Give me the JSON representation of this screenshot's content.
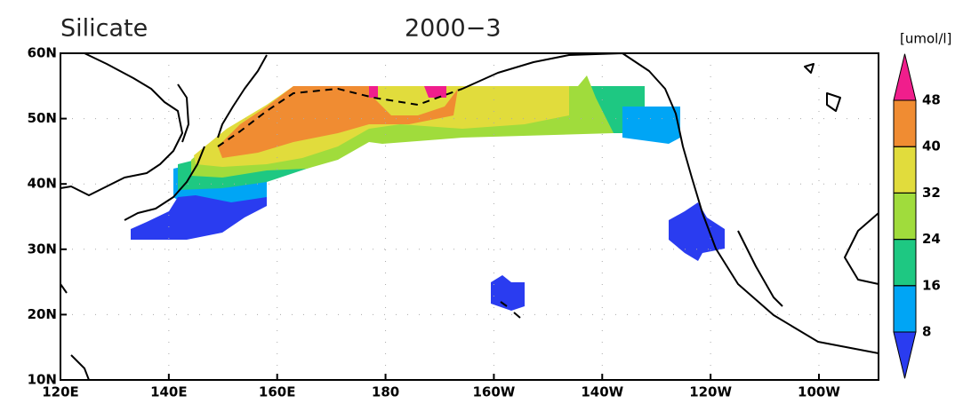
{
  "title": "Silicate",
  "period": "2000−3",
  "map": {
    "lon_range": [
      120,
      271
    ],
    "lat_range": [
      10,
      60
    ],
    "grid": true,
    "lon_ticks": [
      {
        "value": 120,
        "label": "120E"
      },
      {
        "value": 140,
        "label": "140E"
      },
      {
        "value": 160,
        "label": "160E"
      },
      180,
      {
        "value": 200,
        "label": "160W"
      },
      {
        "value": 220,
        "label": "140W"
      },
      {
        "value": 240,
        "label": "120W"
      },
      {
        "value": 260,
        "label": "100W"
      }
    ],
    "lat_ticks": [
      {
        "value": 10,
        "label": "10N"
      },
      {
        "value": 20,
        "label": "20N"
      },
      {
        "value": 30,
        "label": "30N"
      },
      {
        "value": 40,
        "label": "40N"
      },
      {
        "value": 50,
        "label": "50N"
      },
      {
        "value": 60,
        "label": "60N"
      }
    ]
  },
  "colorbar": {
    "unit": "[umol/l]",
    "ticks": [
      8,
      16,
      24,
      32,
      40,
      48
    ],
    "colors": [
      "#2a3cf0",
      "#00a5f5",
      "#1ec882",
      "#a0dc3c",
      "#e1dc3c",
      "#f08c32",
      "#f01e8c"
    ]
  }
}
